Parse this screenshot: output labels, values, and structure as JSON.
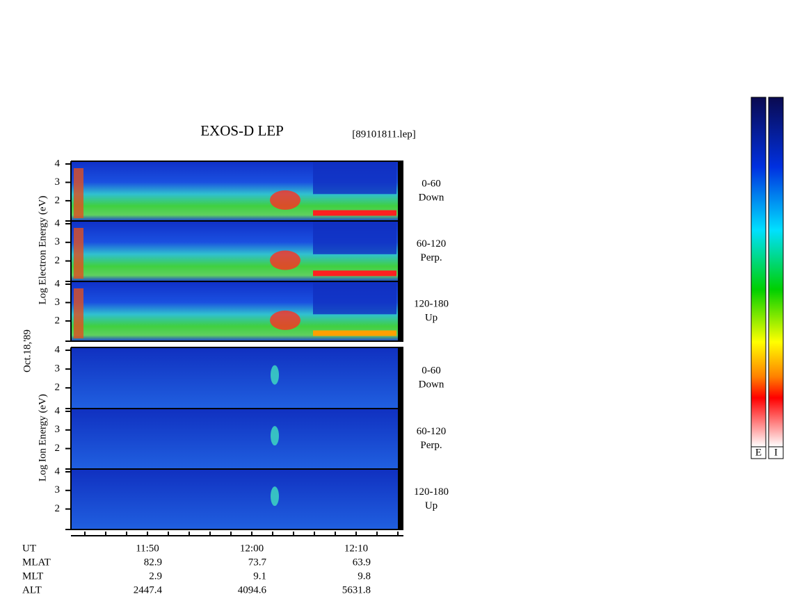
{
  "title": "EXOS-D LEP",
  "filename": "[89101811.lep]",
  "date_label": "Oct.18,'89",
  "electron_axis_label": "Log  Electron  Energy (eV)",
  "ion_axis_label": "Log  Ion  Energy (eV)",
  "ylim": [
    0.9,
    4.15
  ],
  "panels": [
    {
      "yticks": [
        4,
        3,
        2
      ],
      "angle": "0-60",
      "direction": "Down"
    },
    {
      "yticks": [
        4,
        3,
        2
      ],
      "angle": "60-120",
      "direction": "Perp."
    },
    {
      "yticks": [
        4,
        3,
        2
      ],
      "angle": "120-180",
      "direction": "Up"
    },
    {
      "yticks": [
        4,
        3,
        2
      ],
      "angle": "0-60",
      "direction": "Down"
    },
    {
      "yticks": [
        4,
        3,
        2
      ],
      "angle": "60-120",
      "direction": "Perp."
    },
    {
      "yticks": [
        4,
        3,
        2
      ],
      "angle": "120-180",
      "direction": "Up"
    }
  ],
  "time_axis": {
    "label": "UT",
    "ticks": [
      "11:50",
      "12:00",
      "12:10"
    ]
  },
  "orbit_rows": [
    {
      "label": "MLAT",
      "values": [
        82.9,
        73.7,
        63.9
      ]
    },
    {
      "label": "MLT",
      "values": [
        2.9,
        9.1,
        9.8
      ]
    },
    {
      "label": "ALT",
      "values": [
        2447.4,
        4094.6,
        5631.8
      ]
    }
  ],
  "colorbar_labels": [
    "E",
    "I"
  ]
}
